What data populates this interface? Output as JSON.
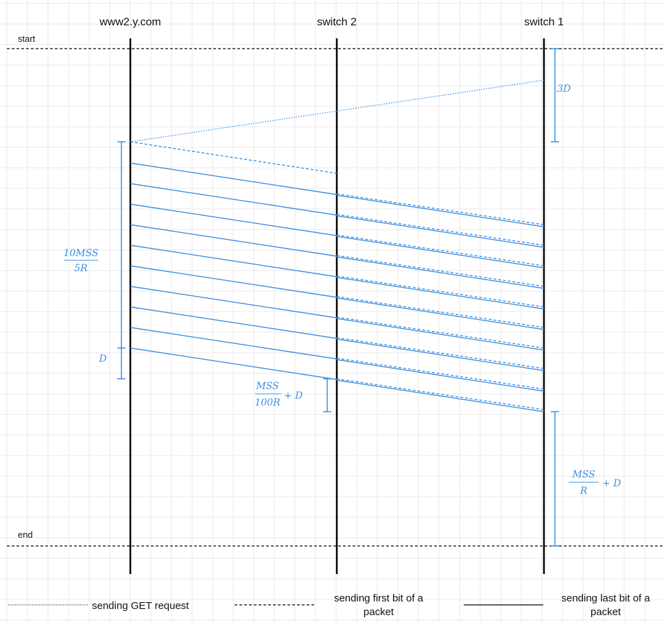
{
  "headers": {
    "host": "www2.y.com",
    "switch2": "switch 2",
    "switch1": "switch 1"
  },
  "markers": {
    "start": "start",
    "end": "end"
  },
  "annotations": {
    "get_delay": "3D",
    "tx_num": "10MSS",
    "tx_den": "5R",
    "prop_host": "D",
    "sw2_num": "MSS",
    "sw2_den": "100R",
    "sw2_plus": "+ D",
    "sw1_num": "MSS",
    "sw1_den": "R",
    "sw1_plus": "+ D"
  },
  "legend": {
    "get_request": "sending GET request",
    "first_bit_line1": "sending first bit of a",
    "first_bit_line2": "packet",
    "last_bit_line1": "sending last bit of a",
    "last_bit_line2": "packet"
  },
  "colors": {
    "accent": "#3a8fe0",
    "lifeline": "#000000",
    "grid": "#e8e8e8"
  }
}
